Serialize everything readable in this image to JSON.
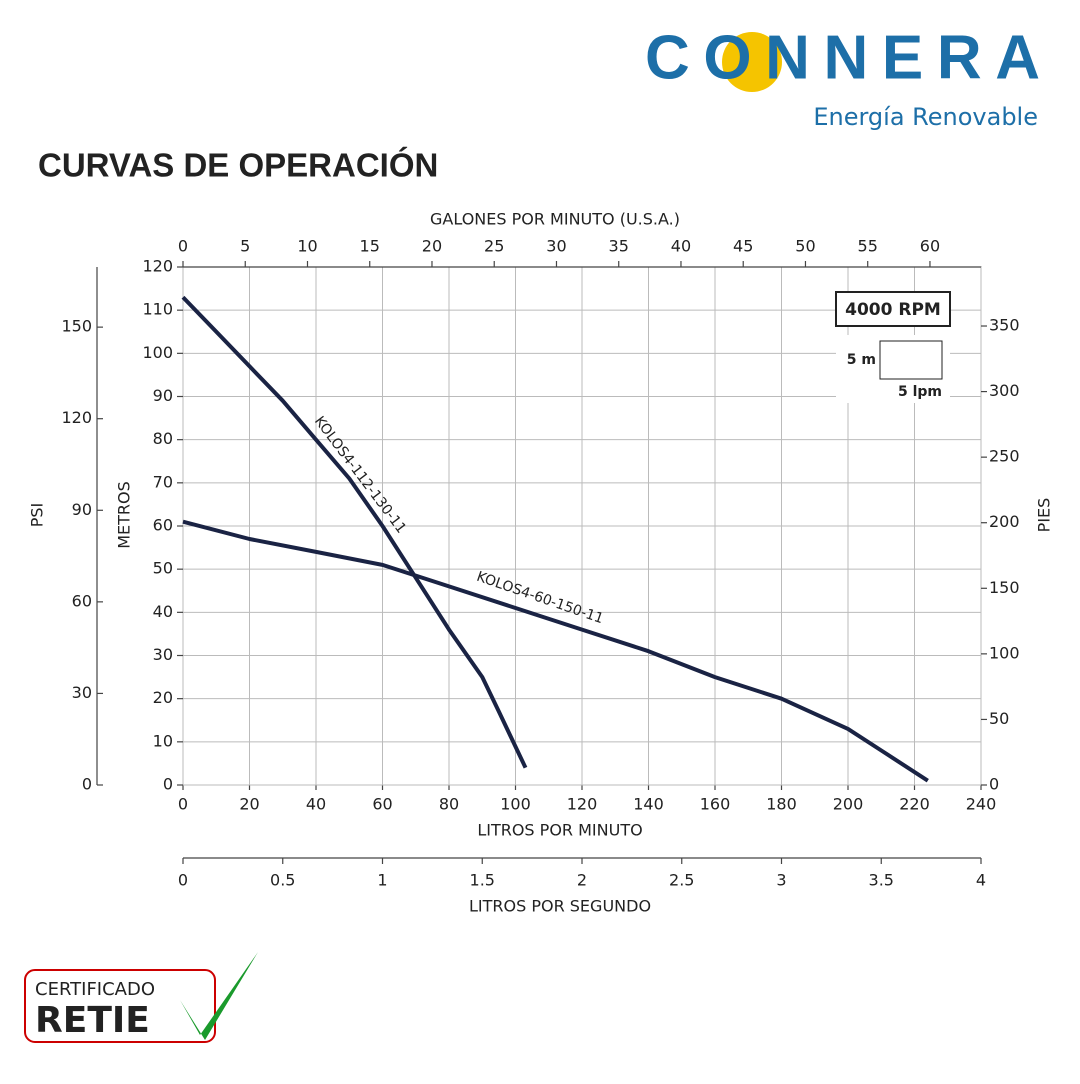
{
  "brand": {
    "name": "CONNERA",
    "tagline": "Energía Renovable"
  },
  "certificate": {
    "top": "CERTIFICADO",
    "bottom": "RETIE"
  },
  "chart_data": {
    "type": "line",
    "title": "CURVAS DE OPERACIÓN",
    "xlabel": "LITROS POR MINUTO",
    "ylabel": "METROS",
    "xlim": [
      0,
      240
    ],
    "xticks": [
      0,
      20,
      40,
      60,
      80,
      100,
      120,
      140,
      160,
      180,
      200,
      220,
      240
    ],
    "ylim": [
      0,
      120
    ],
    "yticks": [
      0,
      10,
      20,
      30,
      40,
      50,
      60,
      70,
      80,
      90,
      100,
      110,
      120
    ],
    "grid": true,
    "top_axis": {
      "label": "GALONES POR MINUTO (U.S.A.)",
      "lim": [
        0,
        64.1
      ],
      "ticks": [
        0,
        5,
        10,
        15,
        20,
        25,
        30,
        35,
        40,
        45,
        50,
        55,
        60
      ]
    },
    "left_axis": {
      "label": "PSI",
      "lim": [
        0,
        169.7
      ],
      "ticks": [
        0,
        30,
        60,
        90,
        120,
        150
      ]
    },
    "right_axis": {
      "label": "PIES",
      "lim": [
        0,
        395
      ],
      "ticks": [
        0,
        50,
        100,
        150,
        200,
        250,
        300,
        350
      ]
    },
    "bottom_axis": {
      "label": "LITROS POR SEGUNDO",
      "lim": [
        0,
        4
      ],
      "ticks": [
        0,
        0.5,
        1,
        1.5,
        2,
        2.5,
        3,
        3.5,
        4
      ]
    },
    "annotations": {
      "speed": "4000 RPM",
      "scale_y": "5 m",
      "scale_x": "5 lpm"
    },
    "series": [
      {
        "name": "KOLOS4-112-130-11",
        "color": "#1a2344",
        "x": [
          0,
          10,
          20,
          30,
          40,
          50,
          60,
          70,
          80,
          90,
          95,
          103
        ],
        "values": [
          113,
          105,
          97,
          89,
          80,
          71,
          60,
          48,
          36,
          25,
          17,
          4
        ]
      },
      {
        "name": "KOLOS4-60-150-11",
        "color": "#1a2344",
        "x": [
          0,
          20,
          40,
          60,
          80,
          100,
          120,
          140,
          160,
          180,
          200,
          210,
          224
        ],
        "values": [
          61,
          57,
          54,
          51,
          46,
          41,
          36,
          31,
          25,
          20,
          13,
          8,
          1
        ]
      }
    ]
  }
}
